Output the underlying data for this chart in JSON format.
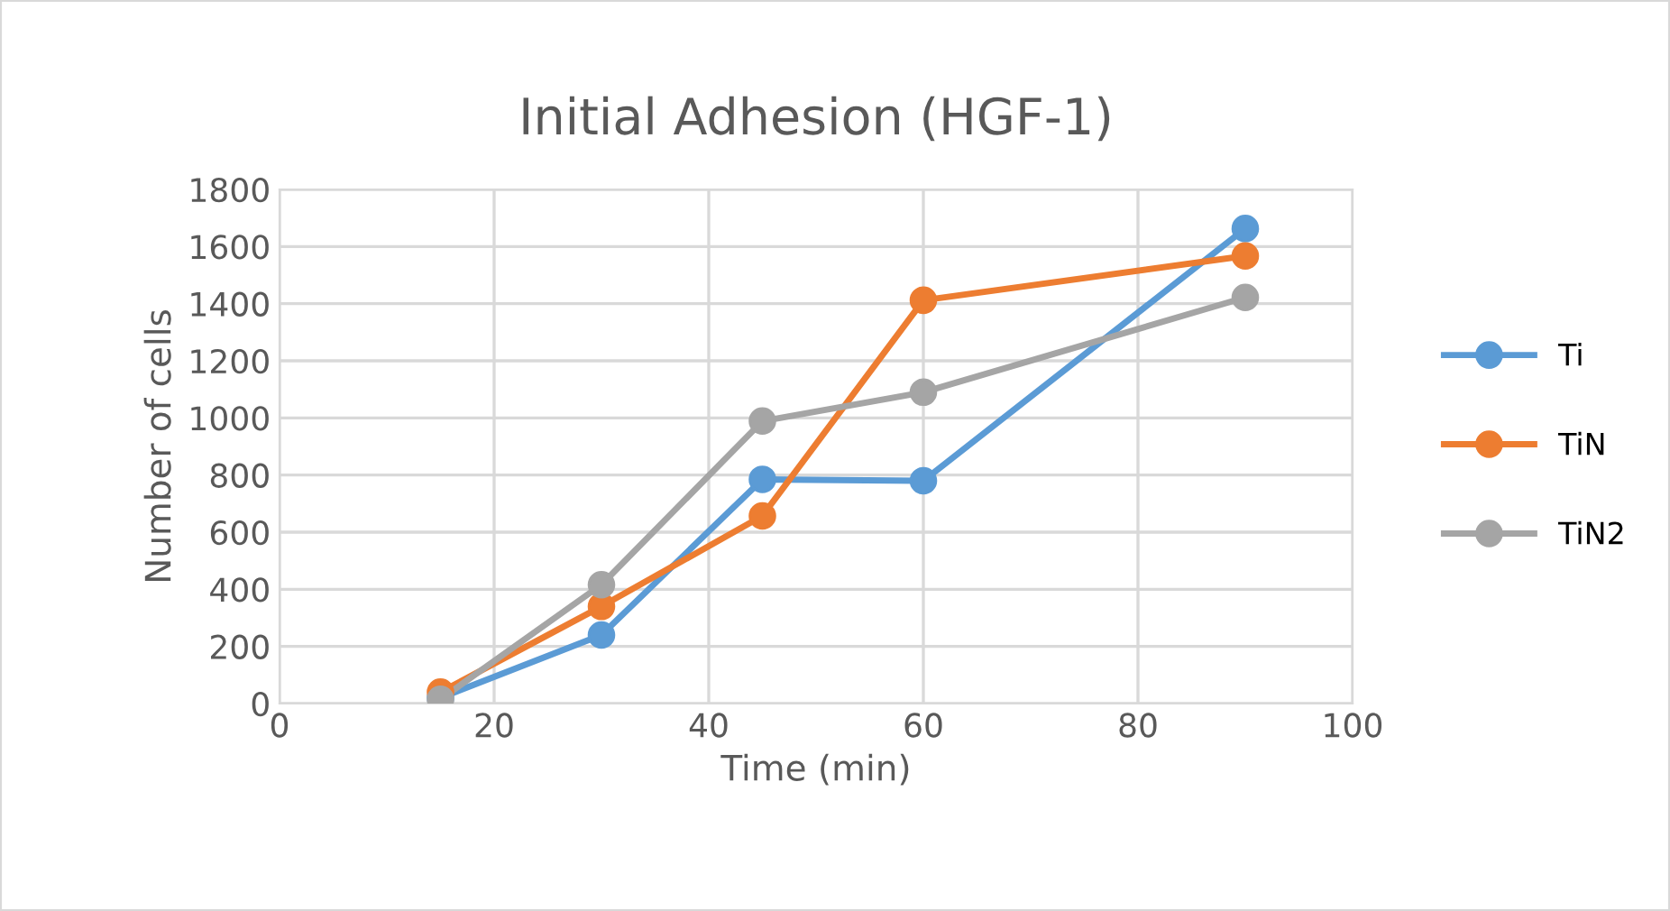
{
  "chart_data": {
    "type": "line",
    "title": "Initial Adhesion (HGF-1)",
    "xlabel": "Time (min)",
    "ylabel": "Number of cells",
    "x": [
      15,
      30,
      45,
      60,
      90
    ],
    "series": [
      {
        "name": "Ti",
        "color": "#5b9bd5",
        "values": [
          20,
          240,
          785,
          780,
          1663
        ]
      },
      {
        "name": "TiN",
        "color": "#ed7d31",
        "values": [
          40,
          340,
          657,
          1412,
          1567
        ]
      },
      {
        "name": "TiN2",
        "color": "#a5a5a5",
        "values": [
          15,
          416,
          989,
          1090,
          1422
        ]
      }
    ],
    "xlim": [
      0,
      100
    ],
    "xticks": [
      0,
      20,
      40,
      60,
      80,
      100
    ],
    "ylim": [
      0,
      1800
    ],
    "yticks": [
      0,
      200,
      400,
      600,
      800,
      1000,
      1200,
      1400,
      1600,
      1800
    ],
    "grid": true,
    "legend": "right",
    "marker": "circle",
    "line_style": "solid"
  }
}
